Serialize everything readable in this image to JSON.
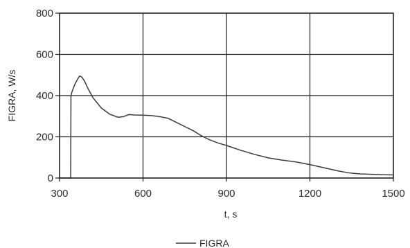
{
  "chart_data": {
    "type": "line",
    "title": "",
    "xlabel": "t, s",
    "ylabel": "FIGRA, W/s",
    "xlim": [
      300,
      1500
    ],
    "ylim": [
      0,
      800
    ],
    "x_ticks": [
      300,
      600,
      900,
      1200,
      1500
    ],
    "y_ticks": [
      0,
      200,
      400,
      600,
      800
    ],
    "x_tick_labels": [
      "300",
      "600",
      "900",
      "1200",
      "1500"
    ],
    "y_tick_labels": [
      "0",
      "200",
      "400",
      "600",
      "800"
    ],
    "grid": true,
    "legend_position": "bottom-center",
    "colors": {
      "line": "#3a3a3a",
      "grid": "#1a1a1a",
      "frame": "#1a1a1a"
    },
    "series": [
      {
        "name": "FIGRA",
        "x": [
          300,
          340,
          341,
          345,
          355,
          365,
          372,
          380,
          390,
          400,
          420,
          450,
          480,
          510,
          530,
          550,
          570,
          600,
          630,
          660,
          690,
          720,
          750,
          780,
          810,
          840,
          870,
          900,
          950,
          1000,
          1050,
          1100,
          1150,
          1200,
          1250,
          1300,
          1340,
          1380,
          1420,
          1460,
          1500
        ],
        "y": [
          0,
          0,
          400,
          420,
          455,
          480,
          495,
          490,
          470,
          440,
          390,
          340,
          310,
          295,
          298,
          308,
          306,
          305,
          303,
          298,
          290,
          270,
          250,
          230,
          205,
          185,
          170,
          158,
          135,
          115,
          98,
          87,
          78,
          65,
          50,
          35,
          25,
          20,
          18,
          16,
          15
        ]
      }
    ]
  }
}
